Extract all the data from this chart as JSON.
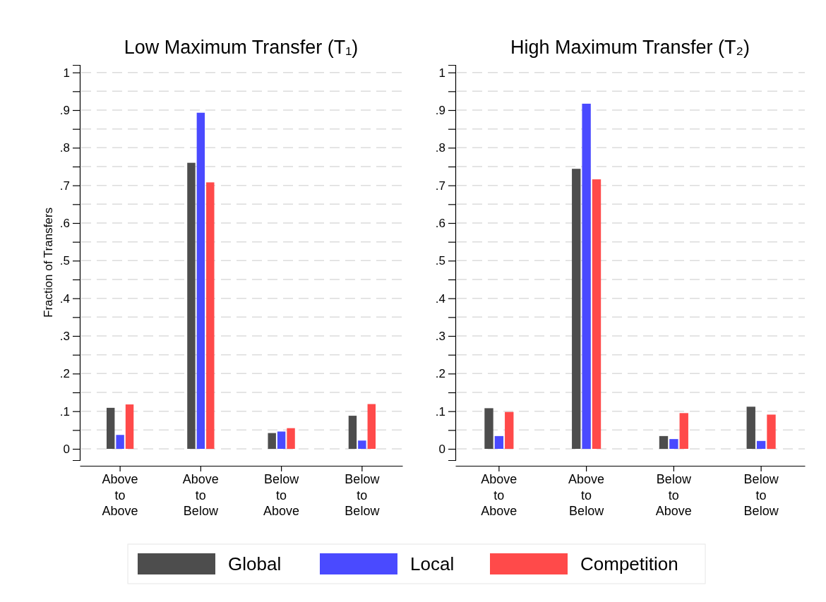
{
  "chart_data": [
    {
      "type": "bar",
      "title": "Low Maximum Transfer (T₁)",
      "ylabel": "Fraction of Transfers",
      "categories": [
        "Above to Above",
        "Above to Below",
        "Below to Above",
        "Below to Below"
      ],
      "series": [
        {
          "name": "Global",
          "color": "#4d4d4d",
          "values": [
            0.109,
            0.76,
            0.042,
            0.088
          ]
        },
        {
          "name": "Local",
          "color": "#4a4aff",
          "values": [
            0.037,
            0.893,
            0.046,
            0.022
          ]
        },
        {
          "name": "Competition",
          "color": "#ff4a4a",
          "values": [
            0.118,
            0.708,
            0.055,
            0.119
          ]
        }
      ],
      "ylim": [
        -0.03,
        1.02
      ],
      "yticks": [
        {
          "value": 0,
          "label": "0"
        },
        {
          "value": 0.05,
          "label": null
        },
        {
          "value": 0.1,
          "label": ".1"
        },
        {
          "value": 0.15,
          "label": null
        },
        {
          "value": 0.2,
          "label": ".2"
        },
        {
          "value": 0.25,
          "label": null
        },
        {
          "value": 0.3,
          "label": ".3"
        },
        {
          "value": 0.35,
          "label": null
        },
        {
          "value": 0.4,
          "label": ".4"
        },
        {
          "value": 0.45,
          "label": null
        },
        {
          "value": 0.5,
          "label": ".5"
        },
        {
          "value": 0.55,
          "label": null
        },
        {
          "value": 0.6,
          "label": ".6"
        },
        {
          "value": 0.65,
          "label": null
        },
        {
          "value": 0.7,
          "label": ".7"
        },
        {
          "value": 0.75,
          "label": null
        },
        {
          "value": 0.8,
          "label": ".8"
        },
        {
          "value": 0.85,
          "label": null
        },
        {
          "value": 0.9,
          "label": ".9"
        },
        {
          "value": 0.95,
          "label": null
        },
        {
          "value": 1,
          "label": "1"
        }
      ],
      "grid": "y",
      "legend": "bottom"
    },
    {
      "type": "bar",
      "title": "High Maximum Transfer (T₂)",
      "categories": [
        "Above to Above",
        "Above to Below",
        "Below to Above",
        "Below to Below"
      ],
      "series": [
        {
          "color": "#4d4d4d",
          "values": [
            0.108,
            0.744,
            0.034,
            0.112
          ]
        },
        {
          "color": "#4a4aff",
          "values": [
            0.034,
            0.917,
            0.026,
            0.021
          ]
        },
        {
          "color": "#ff4a4a",
          "values": [
            0.098,
            0.716,
            0.095,
            0.091
          ]
        }
      ],
      "ylim": [
        -0.03,
        1.02
      ],
      "yticks": [
        {
          "value": 0,
          "label": "0"
        },
        {
          "value": 0.05,
          "label": null
        },
        {
          "value": 0.1,
          "label": ".1"
        },
        {
          "value": 0.15,
          "label": null
        },
        {
          "value": 0.2,
          "label": ".2"
        },
        {
          "value": 0.25,
          "label": null
        },
        {
          "value": 0.3,
          "label": ".3"
        },
        {
          "value": 0.35,
          "label": null
        },
        {
          "value": 0.4,
          "label": ".4"
        },
        {
          "value": 0.45,
          "label": null
        },
        {
          "value": 0.5,
          "label": ".5"
        },
        {
          "value": 0.55,
          "label": null
        },
        {
          "value": 0.6,
          "label": ".6"
        },
        {
          "value": 0.65,
          "label": null
        },
        {
          "value": 0.7,
          "label": ".7"
        },
        {
          "value": 0.75,
          "label": null
        },
        {
          "value": 0.8,
          "label": ".8"
        },
        {
          "value": 0.85,
          "label": null
        },
        {
          "value": 0.9,
          "label": ".9"
        },
        {
          "value": 0.95,
          "label": null
        },
        {
          "value": 1,
          "label": "1"
        }
      ],
      "grid": "y"
    }
  ]
}
